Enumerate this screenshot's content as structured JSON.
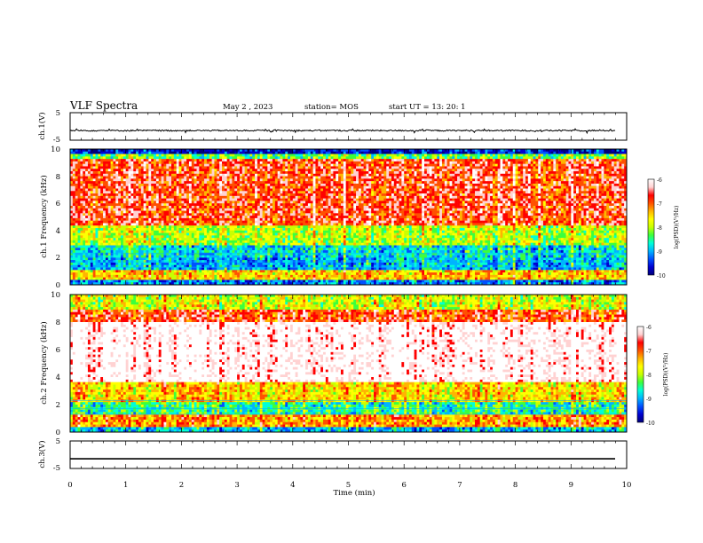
{
  "header": {
    "title": "VLF Spectra",
    "date": "May 2  , 2023",
    "station": "station= MOS",
    "start": "start  UT  =   13: 20: 1"
  },
  "colors": {
    "colormap": [
      "#00007a",
      "#0000d0",
      "#0050ff",
      "#00b4ff",
      "#00ffd8",
      "#3cff3c",
      "#c8ff00",
      "#ffff00",
      "#ffb400",
      "#ff5000",
      "#ff0000",
      "#ffd2d2",
      "#ffffff"
    ]
  },
  "chart_data": [
    {
      "type": "line",
      "name": "panel-ch1-voltage",
      "ylabel": "ch.1(V)",
      "yticks": [
        "5",
        "-5"
      ],
      "ylim": [
        -5,
        5
      ],
      "xlim": [
        0,
        10
      ],
      "trace": "noisy line near -1.5 V with small spikes",
      "level": -1.5
    },
    {
      "type": "heatmap",
      "name": "panel-ch1-spectrogram",
      "ylabel": "ch.1 Frequency (kHz)",
      "ylim": [
        0,
        10
      ],
      "yticks": [
        "0",
        "2",
        "4",
        "6",
        "8",
        "10"
      ],
      "xlim": [
        0,
        10
      ],
      "colorbar": {
        "label": "log(PSD)(V²/Hz)",
        "range": [
          -10,
          -6
        ],
        "ticks": [
          "-6",
          "-7",
          "-8",
          "-9",
          "-10"
        ]
      },
      "bands": [
        {
          "from_khz": 0,
          "to_khz": 0.3,
          "level": -9.2
        },
        {
          "from_khz": 0.3,
          "to_khz": 1.0,
          "level": -7.5
        },
        {
          "from_khz": 1.0,
          "to_khz": 2.0,
          "level": -9.0
        },
        {
          "from_khz": 2.0,
          "to_khz": 3.0,
          "level": -8.8
        },
        {
          "from_khz": 3.0,
          "to_khz": 4.3,
          "level": -8.0
        },
        {
          "from_khz": 4.3,
          "to_khz": 9.2,
          "level": -6.8
        },
        {
          "from_khz": 9.2,
          "to_khz": 9.6,
          "level": -8.3
        },
        {
          "from_khz": 9.6,
          "to_khz": 10.0,
          "level": -9.7
        }
      ]
    },
    {
      "type": "heatmap",
      "name": "panel-ch2-spectrogram",
      "ylabel": "ch.2 Frequency (kHz)",
      "ylim": [
        0,
        10
      ],
      "yticks": [
        "0",
        "2",
        "4",
        "6",
        "8",
        "10"
      ],
      "xlim": [
        0,
        10
      ],
      "colorbar": {
        "label": "log(PSD)(V²/Hz)",
        "range": [
          -10,
          -6
        ],
        "ticks": [
          "-6",
          "-7",
          "-8",
          "-9",
          "-10"
        ]
      },
      "bands": [
        {
          "from_khz": 0,
          "to_khz": 0.3,
          "level": -9.0
        },
        {
          "from_khz": 0.3,
          "to_khz": 1.2,
          "level": -7.3
        },
        {
          "from_khz": 1.2,
          "to_khz": 2.2,
          "level": -8.6
        },
        {
          "from_khz": 2.2,
          "to_khz": 3.6,
          "level": -7.6
        },
        {
          "from_khz": 3.6,
          "to_khz": 8.0,
          "level": -6.0
        },
        {
          "from_khz": 8.0,
          "to_khz": 9.0,
          "level": -6.9
        },
        {
          "from_khz": 9.0,
          "to_khz": 10.0,
          "level": -7.9
        }
      ]
    },
    {
      "type": "line",
      "name": "panel-ch3-voltage",
      "ylabel": "ch.3(V)",
      "yticks": [
        "5",
        "-5"
      ],
      "ylim": [
        -5,
        5
      ],
      "xlim": [
        0,
        10
      ],
      "trace": "flat line",
      "level": -1.5
    }
  ],
  "xaxis": {
    "label": "Time  (min)",
    "ticks": [
      "0",
      "1",
      "2",
      "3",
      "4",
      "5",
      "6",
      "7",
      "8",
      "9",
      "10"
    ],
    "range": [
      0,
      10
    ]
  }
}
